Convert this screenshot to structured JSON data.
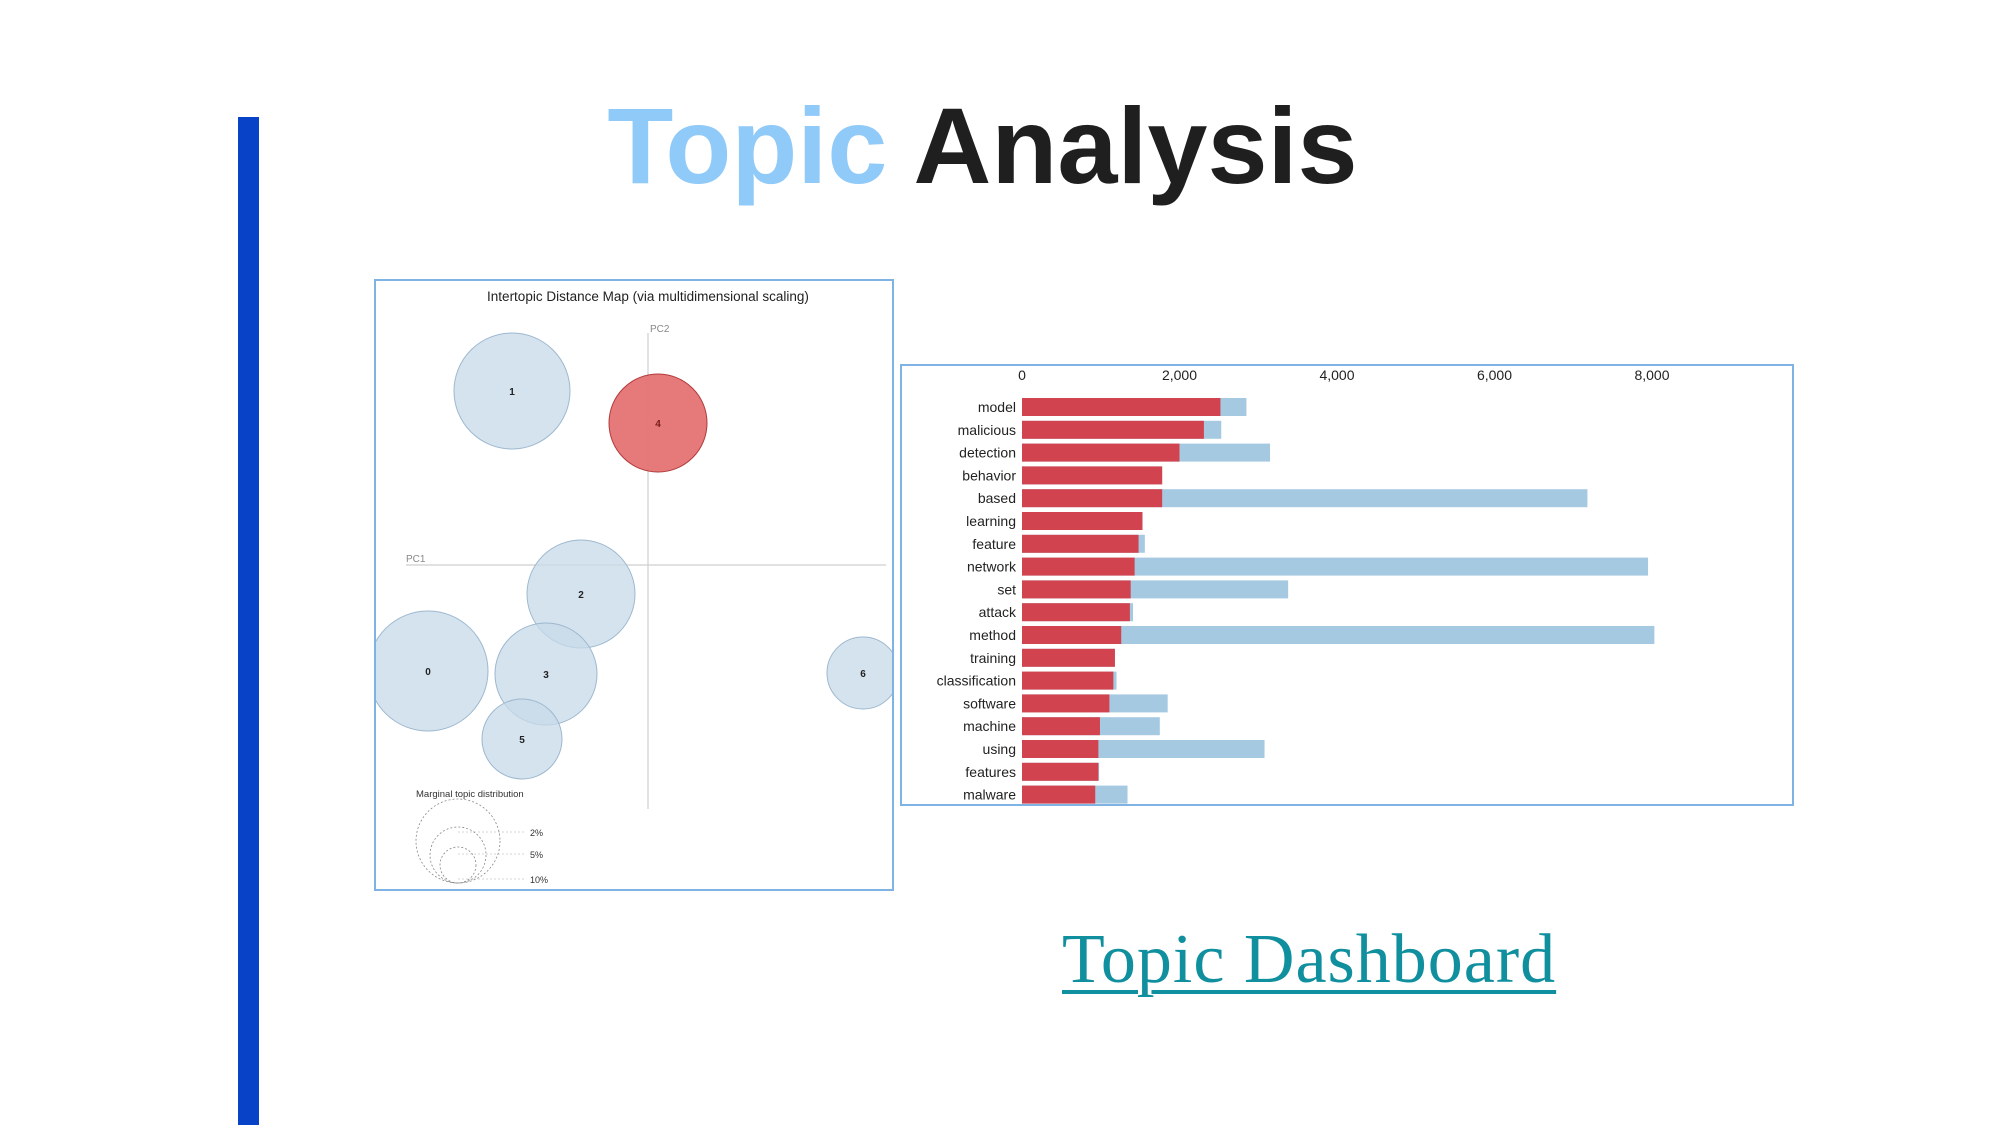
{
  "slide": {
    "title_word1": "Topic",
    "title_word2": "Analysis",
    "link_text": "Topic Dashboard",
    "accent_color": "#0843c7"
  },
  "chart_data": [
    {
      "type": "scatter",
      "title": "Intertopic Distance Map (via multidimensional scaling)",
      "xlabel": "PC1",
      "ylabel": "PC2",
      "topics": [
        {
          "label": "1",
          "selected": false
        },
        {
          "label": "4",
          "selected": true
        },
        {
          "label": "2",
          "selected": false
        },
        {
          "label": "0",
          "selected": false
        },
        {
          "label": "3",
          "selected": false
        },
        {
          "label": "5",
          "selected": false
        },
        {
          "label": "6",
          "selected": false
        }
      ],
      "legend": {
        "title": "Marginal topic distribution",
        "entries": [
          "2%",
          "5%",
          "10%"
        ]
      },
      "colors": {
        "topic": "#c7d9e8",
        "topic_stroke": "#9db8cf",
        "selected": "#e57373",
        "selected_stroke": "#b23a3a"
      }
    },
    {
      "type": "bar",
      "orientation": "horizontal",
      "categories": [
        "model",
        "malicious",
        "detection",
        "behavior",
        "based",
        "learning",
        "feature",
        "network",
        "set",
        "attack",
        "method",
        "training",
        "classification",
        "software",
        "machine",
        "using",
        "features",
        "malware"
      ],
      "series": [
        {
          "values": [
            2850,
            2530,
            3150,
            1780,
            7180,
            1530,
            1560,
            7950,
            3380,
            1410,
            8030,
            1180,
            1200,
            1850,
            1750,
            3080,
            980,
            1340
          ],
          "color": "#a6c9e2"
        },
        {
          "values": [
            2520,
            2310,
            2000,
            1780,
            1780,
            1530,
            1480,
            1430,
            1380,
            1370,
            1260,
            1180,
            1160,
            1110,
            990,
            970,
            970,
            930
          ],
          "color": "#d1434f"
        }
      ],
      "xticks": [
        "0",
        "2,000",
        "4,000",
        "6,000",
        "8,000"
      ],
      "xlim": [
        0,
        9300
      ],
      "axis_position": "top"
    }
  ]
}
